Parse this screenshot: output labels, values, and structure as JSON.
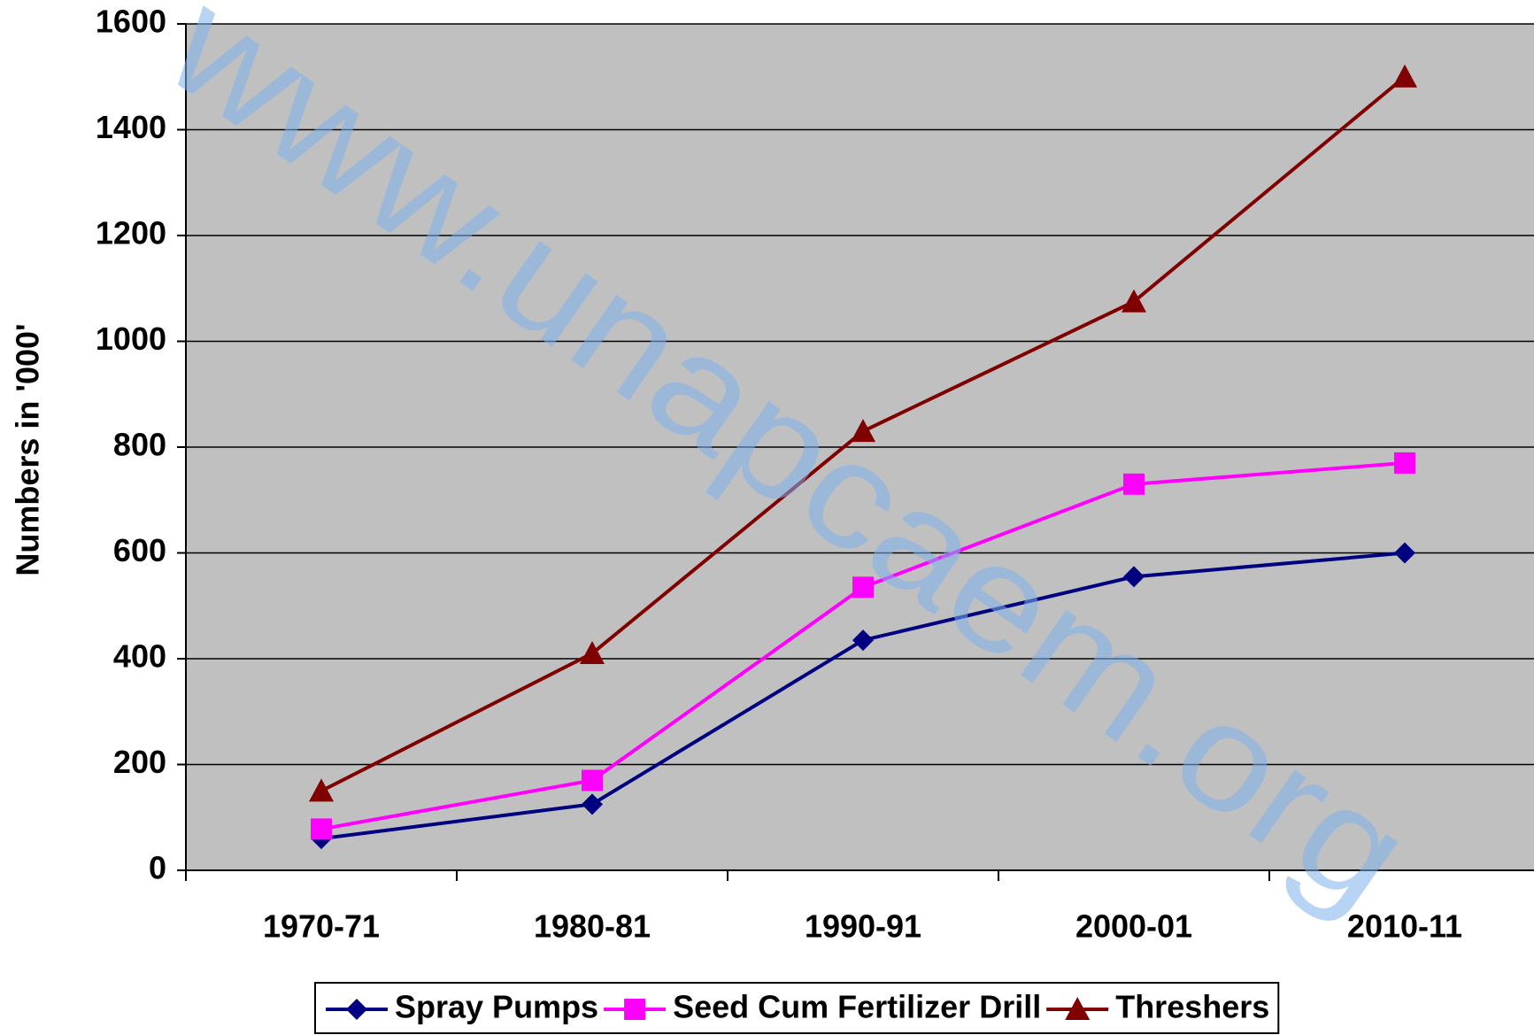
{
  "chart_data": {
    "type": "line",
    "watermark": "www.unapcaem.org",
    "y_axis_label": "Numbers in '000'",
    "categories": [
      "1970-71",
      "1980-81",
      "1990-91",
      "2000-01",
      "2010-11"
    ],
    "series": [
      {
        "name": "Spray Pumps",
        "color": "#000080",
        "marker": "diamond",
        "values": [
          60,
          125,
          435,
          555,
          600
        ]
      },
      {
        "name": "Seed Cum Fertilizer Drill",
        "color": "#ff00ff",
        "marker": "square",
        "values": [
          78,
          170,
          535,
          730,
          770
        ]
      },
      {
        "name": "Threshers",
        "color": "#800000",
        "marker": "triangle",
        "values": [
          150,
          410,
          830,
          1075,
          1500
        ]
      }
    ],
    "ylim": [
      0,
      1600
    ],
    "yticks": [
      0,
      200,
      400,
      600,
      800,
      1000,
      1200,
      1400,
      1600
    ],
    "grid": true,
    "legend": "bottom"
  }
}
